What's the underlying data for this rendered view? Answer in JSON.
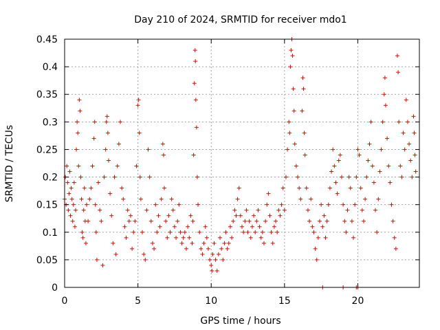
{
  "chart_data": {
    "type": "scatter",
    "title": "Day 210 of 2024, SRMTID for receiver mdo1",
    "xlabel": "GPS time / hours",
    "ylabel": "SRMTID / TECUs",
    "xlim": [
      0,
      24.2
    ],
    "ylim": [
      0,
      0.45
    ],
    "xticks": [
      0,
      5,
      10,
      15,
      20
    ],
    "yticks": [
      0,
      0.05,
      0.1,
      0.15,
      0.2,
      0.25,
      0.3,
      0.35,
      0.4,
      0.45
    ],
    "ytick_labels": [
      "0",
      "0.05",
      "0.1",
      "0.15",
      "0.2",
      "0.25",
      "0.3",
      "0.35",
      "0.4",
      "0.45"
    ],
    "grid": true,
    "marker": "+",
    "color": "#e00000",
    "series": [
      {
        "name": "SRMTID",
        "points": [
          [
            0.0,
            0.16
          ],
          [
            0.05,
            0.2
          ],
          [
            0.1,
            0.15
          ],
          [
            0.15,
            0.22
          ],
          [
            0.2,
            0.19
          ],
          [
            0.25,
            0.14
          ],
          [
            0.3,
            0.17
          ],
          [
            0.35,
            0.21
          ],
          [
            0.4,
            0.13
          ],
          [
            0.45,
            0.18
          ],
          [
            0.5,
            0.16
          ],
          [
            0.55,
            0.12
          ],
          [
            0.6,
            0.15
          ],
          [
            0.65,
            0.19
          ],
          [
            0.7,
            0.11
          ],
          [
            0.75,
            0.14
          ],
          [
            0.8,
            0.25
          ],
          [
            0.85,
            0.3
          ],
          [
            0.9,
            0.28
          ],
          [
            0.95,
            0.22
          ],
          [
            1.0,
            0.34
          ],
          [
            1.05,
            0.32
          ],
          [
            1.1,
            0.2
          ],
          [
            1.15,
            0.16
          ],
          [
            1.2,
            0.1
          ],
          [
            1.25,
            0.09
          ],
          [
            1.3,
            0.14
          ],
          [
            1.35,
            0.18
          ],
          [
            1.4,
            0.12
          ],
          [
            1.45,
            0.08
          ],
          [
            1.5,
            0.15
          ],
          [
            1.6,
            0.12
          ],
          [
            1.7,
            0.16
          ],
          [
            1.8,
            0.18
          ],
          [
            1.9,
            0.22
          ],
          [
            2.0,
            0.27
          ],
          [
            2.05,
            0.3
          ],
          [
            2.1,
            0.15
          ],
          [
            2.15,
            0.1
          ],
          [
            2.2,
            0.05
          ],
          [
            2.3,
            0.19
          ],
          [
            2.4,
            0.14
          ],
          [
            2.5,
            0.12
          ],
          [
            2.6,
            0.04
          ],
          [
            2.7,
            0.2
          ],
          [
            2.8,
            0.25
          ],
          [
            2.85,
            0.3
          ],
          [
            2.9,
            0.31
          ],
          [
            2.95,
            0.28
          ],
          [
            3.0,
            0.23
          ],
          [
            3.1,
            0.17
          ],
          [
            3.2,
            0.13
          ],
          [
            3.3,
            0.08
          ],
          [
            3.4,
            0.2
          ],
          [
            3.5,
            0.06
          ],
          [
            3.6,
            0.22
          ],
          [
            3.7,
            0.26
          ],
          [
            3.8,
            0.3
          ],
          [
            3.9,
            0.18
          ],
          [
            4.0,
            0.16
          ],
          [
            4.1,
            0.11
          ],
          [
            4.2,
            0.09
          ],
          [
            4.3,
            0.14
          ],
          [
            4.4,
            0.12
          ],
          [
            4.5,
            0.13
          ],
          [
            4.6,
            0.07
          ],
          [
            4.7,
            0.1
          ],
          [
            4.8,
            0.12
          ],
          [
            4.9,
            0.22
          ],
          [
            5.0,
            0.33
          ],
          [
            5.05,
            0.34
          ],
          [
            5.1,
            0.28
          ],
          [
            5.15,
            0.2
          ],
          [
            5.2,
            0.16
          ],
          [
            5.3,
            0.1
          ],
          [
            5.4,
            0.06
          ],
          [
            5.5,
            0.05
          ],
          [
            5.6,
            0.14
          ],
          [
            5.7,
            0.25
          ],
          [
            5.8,
            0.2
          ],
          [
            5.9,
            0.12
          ],
          [
            6.0,
            0.08
          ],
          [
            6.1,
            0.07
          ],
          [
            6.2,
            0.15
          ],
          [
            6.3,
            0.1
          ],
          [
            6.4,
            0.13
          ],
          [
            6.5,
            0.11
          ],
          [
            6.6,
            0.16
          ],
          [
            6.7,
            0.26
          ],
          [
            6.75,
            0.24
          ],
          [
            6.8,
            0.18
          ],
          [
            6.9,
            0.12
          ],
          [
            7.0,
            0.09
          ],
          [
            7.1,
            0.13
          ],
          [
            7.2,
            0.1
          ],
          [
            7.3,
            0.16
          ],
          [
            7.4,
            0.14
          ],
          [
            7.5,
            0.11
          ],
          [
            7.6,
            0.09
          ],
          [
            7.7,
            0.12
          ],
          [
            7.8,
            0.15
          ],
          [
            7.9,
            0.1
          ],
          [
            8.0,
            0.08
          ],
          [
            8.1,
            0.09
          ],
          [
            8.2,
            0.1
          ],
          [
            8.3,
            0.07
          ],
          [
            8.4,
            0.11
          ],
          [
            8.5,
            0.09
          ],
          [
            8.6,
            0.13
          ],
          [
            8.7,
            0.08
          ],
          [
            8.75,
            0.12
          ],
          [
            8.8,
            0.24
          ],
          [
            8.85,
            0.37
          ],
          [
            8.9,
            0.43
          ],
          [
            8.92,
            0.41
          ],
          [
            8.95,
            0.34
          ],
          [
            9.0,
            0.29
          ],
          [
            9.05,
            0.2
          ],
          [
            9.1,
            0.15
          ],
          [
            9.2,
            0.1
          ],
          [
            9.3,
            0.07
          ],
          [
            9.4,
            0.06
          ],
          [
            9.5,
            0.08
          ],
          [
            9.6,
            0.11
          ],
          [
            9.7,
            0.09
          ],
          [
            9.8,
            0.07
          ],
          [
            9.9,
            0.05
          ],
          [
            10.0,
            0.04
          ],
          [
            10.05,
            0.03
          ],
          [
            10.1,
            0.06
          ],
          [
            10.2,
            0.08
          ],
          [
            10.3,
            0.05
          ],
          [
            10.4,
            0.03
          ],
          [
            10.5,
            0.06
          ],
          [
            10.6,
            0.09
          ],
          [
            10.7,
            0.07
          ],
          [
            10.8,
            0.05
          ],
          [
            10.9,
            0.08
          ],
          [
            11.0,
            0.1
          ],
          [
            11.1,
            0.07
          ],
          [
            11.2,
            0.08
          ],
          [
            11.3,
            0.11
          ],
          [
            11.4,
            0.09
          ],
          [
            11.5,
            0.12
          ],
          [
            11.6,
            0.14
          ],
          [
            11.7,
            0.13
          ],
          [
            11.8,
            0.16
          ],
          [
            11.9,
            0.18
          ],
          [
            12.0,
            0.13
          ],
          [
            12.1,
            0.11
          ],
          [
            12.2,
            0.1
          ],
          [
            12.3,
            0.12
          ],
          [
            12.4,
            0.14
          ],
          [
            12.5,
            0.1
          ],
          [
            12.6,
            0.12
          ],
          [
            12.7,
            0.09
          ],
          [
            12.8,
            0.11
          ],
          [
            12.9,
            0.13
          ],
          [
            13.0,
            0.1
          ],
          [
            13.1,
            0.12
          ],
          [
            13.2,
            0.14
          ],
          [
            13.3,
            0.11
          ],
          [
            13.4,
            0.09
          ],
          [
            13.5,
            0.1
          ],
          [
            13.6,
            0.08
          ],
          [
            13.7,
            0.12
          ],
          [
            13.8,
            0.15
          ],
          [
            13.9,
            0.17
          ],
          [
            14.0,
            0.13
          ],
          [
            14.1,
            0.1
          ],
          [
            14.2,
            0.08
          ],
          [
            14.3,
            0.11
          ],
          [
            14.4,
            0.12
          ],
          [
            14.5,
            0.1
          ],
          [
            14.6,
            0.14
          ],
          [
            14.7,
            0.13
          ],
          [
            14.8,
            0.15
          ],
          [
            14.9,
            0.18
          ],
          [
            15.0,
            0.14
          ],
          [
            15.1,
            0.2
          ],
          [
            15.2,
            0.25
          ],
          [
            15.3,
            0.3
          ],
          [
            15.35,
            0.28
          ],
          [
            15.4,
            0.4
          ],
          [
            15.45,
            0.43
          ],
          [
            15.5,
            0.45
          ],
          [
            15.55,
            0.42
          ],
          [
            15.6,
            0.36
          ],
          [
            15.65,
            0.32
          ],
          [
            15.7,
            0.26
          ],
          [
            15.8,
            0.22
          ],
          [
            15.9,
            0.2
          ],
          [
            16.0,
            0.18
          ],
          [
            16.1,
            0.16
          ],
          [
            16.2,
            0.32
          ],
          [
            16.25,
            0.38
          ],
          [
            16.3,
            0.36
          ],
          [
            16.35,
            0.28
          ],
          [
            16.4,
            0.24
          ],
          [
            16.5,
            0.18
          ],
          [
            16.6,
            0.14
          ],
          [
            16.7,
            0.12
          ],
          [
            16.8,
            0.16
          ],
          [
            16.9,
            0.11
          ],
          [
            17.0,
            0.1
          ],
          [
            17.1,
            0.07
          ],
          [
            17.2,
            0.05
          ],
          [
            17.3,
            0.09
          ],
          [
            17.4,
            0.12
          ],
          [
            17.5,
            0.15
          ],
          [
            17.6,
            0.11
          ],
          [
            17.7,
            0.13
          ],
          [
            17.8,
            0.09
          ],
          [
            17.9,
            0.12
          ],
          [
            18.0,
            0.15
          ],
          [
            18.1,
            0.18
          ],
          [
            18.2,
            0.21
          ],
          [
            18.3,
            0.25
          ],
          [
            18.4,
            0.22
          ],
          [
            18.5,
            0.19
          ],
          [
            18.6,
            0.17
          ],
          [
            18.7,
            0.23
          ],
          [
            18.8,
            0.24
          ],
          [
            18.9,
            0.2
          ],
          [
            19.0,
            0.15
          ],
          [
            19.1,
            0.12
          ],
          [
            19.2,
            0.1
          ],
          [
            19.3,
            0.14
          ],
          [
            19.4,
            0.2
          ],
          [
            19.5,
            0.18
          ],
          [
            19.6,
            0.12
          ],
          [
            19.7,
            0.09
          ],
          [
            19.8,
            0.15
          ],
          [
            19.9,
            0.2
          ],
          [
            20.0,
            0.25
          ],
          [
            20.1,
            0.24
          ],
          [
            20.2,
            0.18
          ],
          [
            20.3,
            0.14
          ],
          [
            20.4,
            0.12
          ],
          [
            20.5,
            0.16
          ],
          [
            20.6,
            0.2
          ],
          [
            20.7,
            0.23
          ],
          [
            20.8,
            0.26
          ],
          [
            20.9,
            0.3
          ],
          [
            21.0,
            0.22
          ],
          [
            21.1,
            0.19
          ],
          [
            21.2,
            0.14
          ],
          [
            21.3,
            0.1
          ],
          [
            21.4,
            0.16
          ],
          [
            21.5,
            0.21
          ],
          [
            21.6,
            0.25
          ],
          [
            21.7,
            0.3
          ],
          [
            21.8,
            0.35
          ],
          [
            21.85,
            0.38
          ],
          [
            21.9,
            0.33
          ],
          [
            22.0,
            0.27
          ],
          [
            22.1,
            0.22
          ],
          [
            22.2,
            0.19
          ],
          [
            22.3,
            0.15
          ],
          [
            22.4,
            0.12
          ],
          [
            22.5,
            0.09
          ],
          [
            22.6,
            0.07
          ],
          [
            22.7,
            0.42
          ],
          [
            22.75,
            0.39
          ],
          [
            22.8,
            0.3
          ],
          [
            22.9,
            0.22
          ],
          [
            23.0,
            0.2
          ],
          [
            23.1,
            0.28
          ],
          [
            23.2,
            0.25
          ],
          [
            23.3,
            0.34
          ],
          [
            23.4,
            0.3
          ],
          [
            23.5,
            0.26
          ],
          [
            23.6,
            0.23
          ],
          [
            23.7,
            0.2
          ],
          [
            23.8,
            0.31
          ],
          [
            23.85,
            0.28
          ],
          [
            23.9,
            0.24
          ],
          [
            23.95,
            0.21
          ],
          [
            17.6,
            0.0
          ],
          [
            19.0,
            0.0
          ],
          [
            19.9,
            0.0
          ],
          [
            20.0,
            0.0
          ]
        ]
      }
    ]
  }
}
